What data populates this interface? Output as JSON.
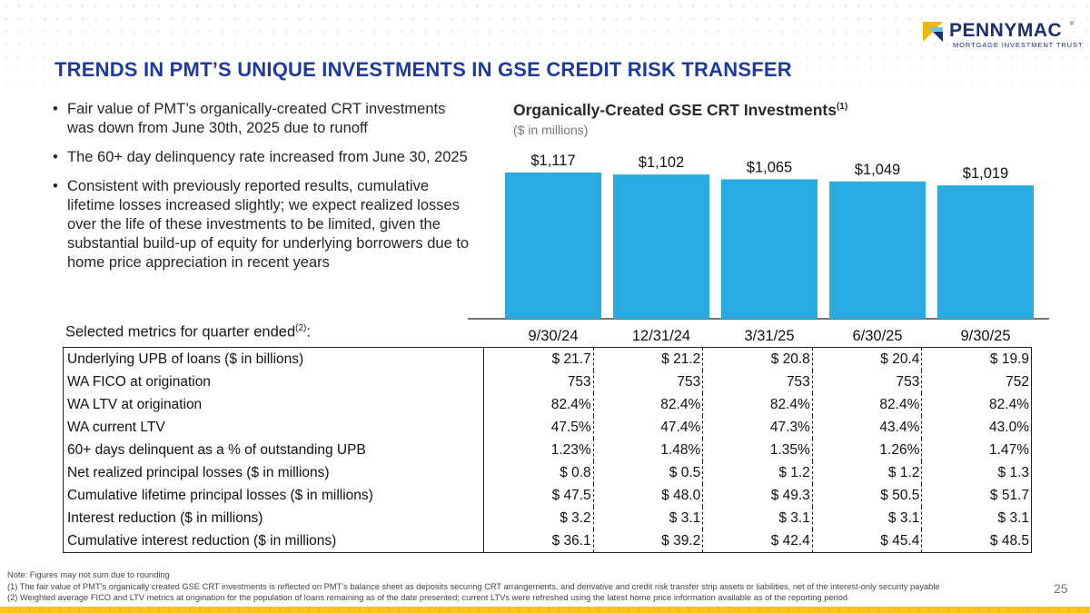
{
  "logo": {
    "name": "PENNYMAC",
    "registered": "®",
    "subtitle": "MORTGAGE INVESTMENT TRUST",
    "colors": {
      "yellow": "#f2b705",
      "navy": "#1e2f6e",
      "light_blue": "#6cc1e8"
    }
  },
  "title": "TRENDS IN PMT’S UNIQUE INVESTMENTS IN GSE CREDIT RISK TRANSFER",
  "bullets": [
    "Fair value of PMT’s organically-created CRT investments was down from June 30th, 2025 due to runoff",
    "The 60+ day delinquency rate increased from June 30, 2025",
    "Consistent with previously reported results, cumulative lifetime losses increased slightly; we expect realized losses over the life of these investments to be limited, given the substantial build-up of equity for underlying borrowers due to home price appreciation in recent years"
  ],
  "chart_data": {
    "type": "bar",
    "title": "Organically-Created GSE CRT Investments",
    "title_footnote": "(1)",
    "subtitle": "($ in millions)",
    "categories": [
      "9/30/24",
      "12/31/24",
      "3/31/25",
      "6/30/25",
      "9/30/25"
    ],
    "values": [
      1117,
      1102,
      1065,
      1049,
      1019
    ],
    "value_labels": [
      "$1,117",
      "$1,102",
      "$1,065",
      "$1,049",
      "$1,019"
    ],
    "bar_color": "#29abe2",
    "ylim": [
      0,
      1117
    ],
    "grid": false,
    "xlabel": "",
    "ylabel": ""
  },
  "metrics": {
    "label": "Selected metrics for quarter ended",
    "label_footnote": "(2)",
    "label_suffix": ":",
    "rows": [
      {
        "label": "Underlying UPB of loans ($ in billions)",
        "values": [
          "$ 21.7",
          "$ 21.2",
          "$ 20.8",
          "$ 20.4",
          "$ 19.9"
        ]
      },
      {
        "label": "WA FICO at origination",
        "values": [
          "753",
          "753",
          "753",
          "753",
          "752"
        ]
      },
      {
        "label": "WA LTV at origination",
        "values": [
          "82.4%",
          "82.4%",
          "82.4%",
          "82.4%",
          "82.4%"
        ]
      },
      {
        "label": "WA current LTV",
        "values": [
          "47.5%",
          "47.4%",
          "47.3%",
          "43.4%",
          "43.0%"
        ]
      },
      {
        "label": "60+ days delinquent as a % of outstanding UPB",
        "values": [
          "1.23%",
          "1.48%",
          "1.35%",
          "1.26%",
          "1.47%"
        ]
      },
      {
        "label": "Net realized principal losses ($ in millions)",
        "values": [
          "$ 0.8",
          "$ 0.5",
          "$ 1.2",
          "$ 1.2",
          "$ 1.3"
        ]
      },
      {
        "label": "Cumulative lifetime principal losses ($ in millions)",
        "values": [
          "$ 47.5",
          "$ 48.0",
          "$ 49.3",
          "$ 50.5",
          "$ 51.7"
        ]
      },
      {
        "label": "Interest reduction ($ in millions)",
        "values": [
          "$ 3.2",
          "$ 3.1",
          "$ 3.1",
          "$ 3.1",
          "$ 3.1"
        ]
      },
      {
        "label": "Cumulative interest reduction ($ in millions)",
        "values": [
          "$ 36.1",
          "$ 39.2",
          "$ 42.4",
          "$ 45.4",
          "$ 48.5"
        ]
      }
    ]
  },
  "notes": [
    "Note: Figures may not sum due to rounding",
    "(1) The fair value of PMT’s organically created GSE CRT investments is reflected on PMT’s balance sheet as deposits securing CRT arrangements, and derivative and credit risk transfer strip assets or liabilities, net of the interest-only security payable",
    "(2) Weighted average FICO and LTV metrics at origination for the population of loans remaining as of the date presented; current LTVs were refreshed using the latest home price information available as of the reporting period"
  ],
  "page_number": "25"
}
